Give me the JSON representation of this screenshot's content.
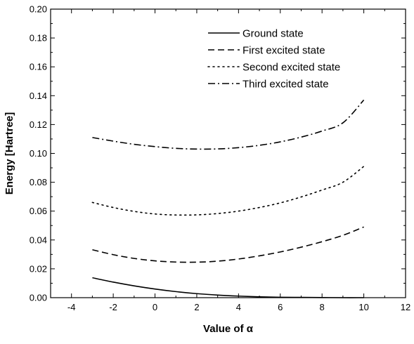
{
  "chart_data": {
    "type": "line",
    "xlabel": "Value of α",
    "ylabel": "Energy [Hartree]",
    "xlim": [
      -5,
      12
    ],
    "ylim": [
      0.0,
      0.2
    ],
    "x_ticks": [
      "-4",
      "-2",
      "0",
      "2",
      "4",
      "6",
      "8",
      "10",
      "12"
    ],
    "y_ticks": [
      "0.00",
      "0.02",
      "0.04",
      "0.06",
      "0.08",
      "0.10",
      "0.12",
      "0.14",
      "0.16",
      "0.18",
      "0.20"
    ],
    "grid": false,
    "legend_position": "top-right",
    "x": [
      -3,
      -2,
      -1,
      0,
      1,
      2,
      3,
      4,
      5,
      6,
      7,
      8,
      9,
      10
    ],
    "series": [
      {
        "name": "Ground state",
        "dash": "solid",
        "values": [
          0.0138,
          0.0108,
          0.0082,
          0.006,
          0.0042,
          0.0028,
          0.0018,
          0.0011,
          0.0006,
          0.0003,
          0.0002,
          0.0001,
          0.0,
          0.0
        ]
      },
      {
        "name": "First excited state",
        "dash": "dashed",
        "values": [
          0.0332,
          0.0298,
          0.0272,
          0.0255,
          0.0247,
          0.0246,
          0.0253,
          0.0268,
          0.029,
          0.0317,
          0.035,
          0.0388,
          0.0432,
          0.049
        ]
      },
      {
        "name": "Second excited state",
        "dash": "dotted",
        "values": [
          0.066,
          0.0625,
          0.0598,
          0.058,
          0.0573,
          0.0574,
          0.0583,
          0.06,
          0.0625,
          0.0657,
          0.0698,
          0.0746,
          0.08,
          0.091
        ]
      },
      {
        "name": "Third excited state",
        "dash": "dashdot",
        "values": [
          0.111,
          0.1085,
          0.1063,
          0.1047,
          0.1035,
          0.103,
          0.1031,
          0.104,
          0.1056,
          0.108,
          0.1113,
          0.1155,
          0.1212,
          0.137
        ]
      }
    ]
  }
}
